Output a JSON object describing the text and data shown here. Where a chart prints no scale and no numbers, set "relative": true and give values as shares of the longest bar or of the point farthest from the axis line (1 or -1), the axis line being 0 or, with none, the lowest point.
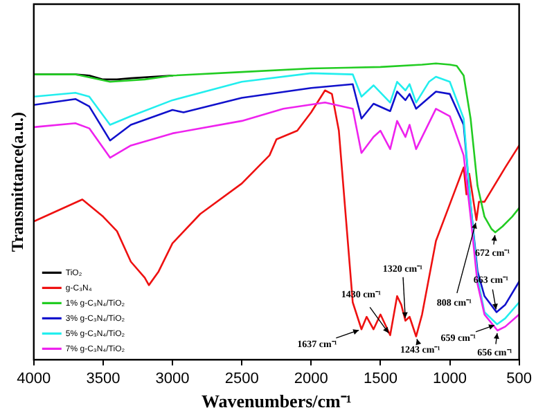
{
  "chart_data": {
    "type": "line",
    "relative": true,
    "xlabel": "Wavenumbers/cm⁻¹",
    "ylabel": "Transmittance(a.u.)",
    "xlim": [
      4000,
      500
    ],
    "xticks": [
      4000,
      3500,
      3000,
      2500,
      2000,
      1500,
      1000,
      500
    ],
    "grid": false,
    "legend": "bottom left",
    "marker": "none",
    "line_style": "solid",
    "series": [
      {
        "name": "TiO₂",
        "color": "#000000",
        "x": [
          4000,
          3700,
          3600,
          3500,
          3400,
          3300,
          3000
        ],
        "values": [
          0.963,
          0.963,
          0.959,
          0.946,
          0.946,
          0.95,
          0.959
        ]
      },
      {
        "name": "g-C₃N₄",
        "color": "#ee1111",
        "x": [
          4000,
          3650,
          3500,
          3400,
          3300,
          3200,
          3170,
          3100,
          3000,
          2800,
          2500,
          2300,
          2250,
          2100,
          2000,
          1900,
          1850,
          1800,
          1750,
          1700,
          1637,
          1600,
          1550,
          1500,
          1430,
          1380,
          1350,
          1320,
          1290,
          1243,
          1200,
          1100,
          1000,
          900,
          880,
          860,
          808,
          790,
          750,
          600,
          500
        ],
        "values": [
          0.467,
          0.541,
          0.483,
          0.434,
          0.331,
          0.277,
          0.252,
          0.298,
          0.393,
          0.492,
          0.595,
          0.69,
          0.744,
          0.773,
          0.835,
          0.909,
          0.897,
          0.773,
          0.483,
          0.194,
          0.103,
          0.145,
          0.103,
          0.153,
          0.083,
          0.215,
          0.186,
          0.132,
          0.145,
          0.079,
          0.153,
          0.401,
          0.525,
          0.649,
          0.558,
          0.628,
          0.471,
          0.533,
          0.533,
          0.649,
          0.723
        ]
      },
      {
        "name": "1% g-C₃N₄/TiO₂",
        "color": "#22cc22",
        "x": [
          4000,
          3700,
          3450,
          3200,
          3000,
          2500,
          2000,
          1500,
          1200,
          1100,
          1000,
          950,
          900,
          850,
          800,
          750,
          700,
          672,
          620,
          550,
          500
        ],
        "values": [
          0.963,
          0.963,
          0.938,
          0.946,
          0.959,
          0.971,
          0.983,
          0.988,
          0.996,
          1,
          0.996,
          0.992,
          0.959,
          0.814,
          0.587,
          0.483,
          0.442,
          0.43,
          0.45,
          0.483,
          0.512
        ]
      },
      {
        "name": "3% g-C₃N₄/TiO₂",
        "color": "#1111cc",
        "x": [
          4000,
          3700,
          3600,
          3450,
          3300,
          3000,
          2920,
          2500,
          2000,
          1700,
          1637,
          1550,
          1430,
          1380,
          1320,
          1290,
          1243,
          1100,
          1000,
          900,
          850,
          800,
          750,
          663,
          600,
          500
        ],
        "values": [
          0.86,
          0.88,
          0.855,
          0.74,
          0.793,
          0.843,
          0.835,
          0.884,
          0.917,
          0.93,
          0.814,
          0.864,
          0.839,
          0.905,
          0.876,
          0.897,
          0.847,
          0.905,
          0.897,
          0.793,
          0.525,
          0.298,
          0.215,
          0.161,
          0.186,
          0.264
        ]
      },
      {
        "name": "5% g-C₃N₄/TiO₂",
        "color": "#22eeee",
        "x": [
          4000,
          3700,
          3600,
          3450,
          3300,
          3000,
          2500,
          2000,
          1700,
          1637,
          1550,
          1430,
          1380,
          1320,
          1290,
          1243,
          1150,
          1100,
          1000,
          900,
          850,
          800,
          750,
          659,
          600,
          500
        ],
        "values": [
          0.888,
          0.901,
          0.888,
          0.793,
          0.822,
          0.876,
          0.938,
          0.967,
          0.963,
          0.888,
          0.926,
          0.868,
          0.938,
          0.909,
          0.93,
          0.868,
          0.938,
          0.955,
          0.938,
          0.814,
          0.525,
          0.277,
          0.161,
          0.12,
          0.14,
          0.194
        ]
      },
      {
        "name": "7% g-C₃N₄/TiO₂",
        "color": "#ee22ee",
        "x": [
          4000,
          3700,
          3600,
          3450,
          3300,
          3000,
          2500,
          2200,
          1900,
          1700,
          1637,
          1550,
          1500,
          1430,
          1380,
          1320,
          1290,
          1243,
          1100,
          1000,
          900,
          850,
          800,
          750,
          656,
          600,
          500
        ],
        "values": [
          0.785,
          0.798,
          0.781,
          0.682,
          0.723,
          0.764,
          0.806,
          0.847,
          0.868,
          0.847,
          0.698,
          0.752,
          0.773,
          0.711,
          0.806,
          0.752,
          0.793,
          0.711,
          0.847,
          0.822,
          0.69,
          0.483,
          0.256,
          0.153,
          0.099,
          0.112,
          0.153
        ]
      }
    ],
    "annotations": [
      {
        "text": "1637 cm⁻¹",
        "x": 1637,
        "y": 0.103
      },
      {
        "text": "1430 cm⁻¹",
        "x": 1430,
        "y": 0.083
      },
      {
        "text": "1320 cm⁻¹",
        "x": 1320,
        "y": 0.132
      },
      {
        "text": "1243 cm⁻¹",
        "x": 1243,
        "y": 0.079
      },
      {
        "text": "808 cm⁻¹",
        "x": 808,
        "y": 0.471
      },
      {
        "text": "672 cm⁻¹",
        "x": 672,
        "y": 0.43
      },
      {
        "text": "663 cm⁻¹",
        "x": 663,
        "y": 0.161
      },
      {
        "text": "659 cm⁻¹",
        "x": 659,
        "y": 0.12
      },
      {
        "text": "656 cm⁻¹",
        "x": 656,
        "y": 0.099
      }
    ]
  }
}
